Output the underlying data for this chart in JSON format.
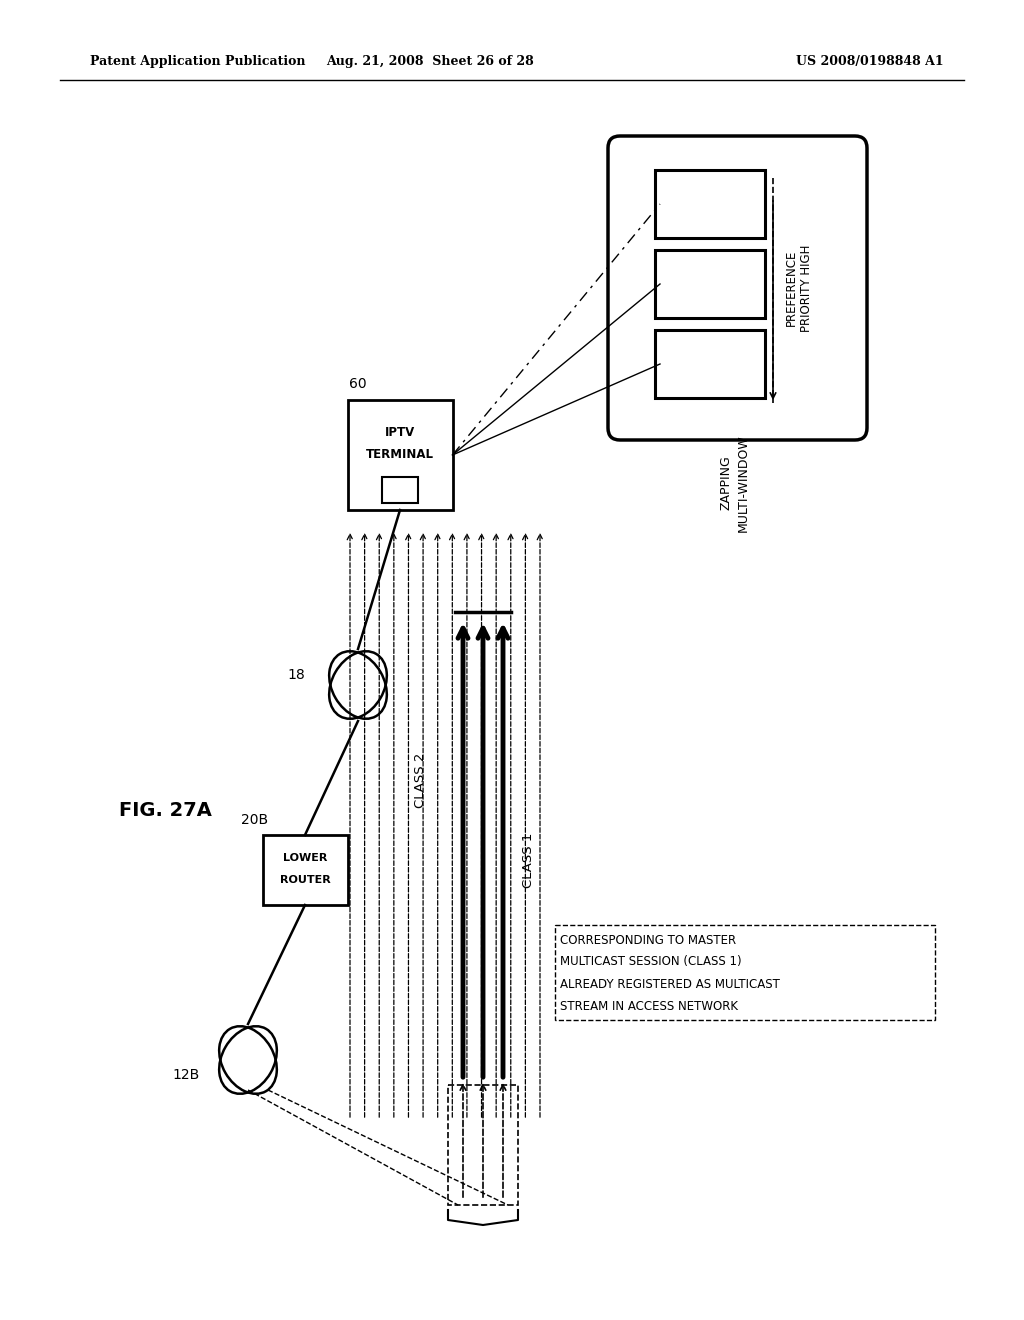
{
  "bg_color": "#ffffff",
  "header_left": "Patent Application Publication",
  "header_mid": "Aug. 21, 2008  Sheet 26 of 28",
  "header_right": "US 2008/0198848 A1",
  "fig_label": "FIG. 27A",
  "node_12B_label": "12B",
  "node_20B_label": "20B",
  "node_20B_text": [
    "LOWER",
    "ROUTER"
  ],
  "node_18_label": "18",
  "node_60_label": "60",
  "node_60_text": [
    "IPTV",
    "TERMINAL"
  ],
  "class1_label": "CLASS 1",
  "class2_label": "CLASS 2",
  "annotation_text": [
    "CORRESPONDING TO MASTER",
    "MULTICAST SESSION (CLASS 1)",
    "ALREADY REGISTERED AS MULTICAST",
    "STREAM IN ACCESS NETWORK"
  ],
  "zapping_label": [
    "ZAPPING",
    "MULTI-WINDOW"
  ],
  "preference_label": [
    "PREFERENCE",
    "PRIORITY HIGH"
  ]
}
